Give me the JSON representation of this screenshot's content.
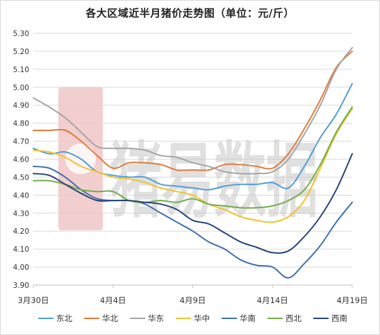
{
  "chart_data": {
    "type": "line",
    "title": "各大区域近半月猪价走势图（单位：元/斤）",
    "xlabel": "",
    "ylabel": "",
    "ylim": [
      3.9,
      5.3
    ],
    "yticks": [
      3.9,
      4.0,
      4.1,
      4.2,
      4.3,
      4.4,
      4.5,
      4.6,
      4.7,
      4.8,
      4.9,
      5.0,
      5.1,
      5.2,
      5.3
    ],
    "ytick_labels": [
      "3.90",
      "4.00",
      "4.10",
      "4.20",
      "4.30",
      "4.40",
      "4.50",
      "4.60",
      "4.70",
      "4.80",
      "4.90",
      "5.00",
      "5.10",
      "5.20",
      "5.30"
    ],
    "x": [
      "3月30日",
      "3月31日",
      "4月1日",
      "4月2日",
      "4月3日",
      "4月4日",
      "4月5日",
      "4月6日",
      "4月7日",
      "4月8日",
      "4月9日",
      "4月10日",
      "4月11日",
      "4月12日",
      "4月13日",
      "4月14日",
      "4月15日",
      "4月16日",
      "4月17日",
      "4月18日",
      "4月19日"
    ],
    "xtick_labels": [
      "3月30日",
      "4月4日",
      "4月9日",
      "4月14日",
      "4月19日"
    ],
    "grid": true,
    "legend_position": "bottom",
    "watermark": "猪易数据",
    "series": [
      {
        "name": "东北",
        "color": "#4f9fd6",
        "values": [
          4.66,
          4.63,
          4.64,
          4.6,
          4.53,
          4.51,
          4.5,
          4.5,
          4.46,
          4.45,
          4.44,
          4.43,
          4.45,
          4.46,
          4.46,
          4.47,
          4.44,
          4.56,
          4.72,
          4.85,
          5.02
        ]
      },
      {
        "name": "华北",
        "color": "#e07b39",
        "values": [
          4.76,
          4.76,
          4.76,
          4.7,
          4.62,
          4.55,
          4.58,
          4.58,
          4.57,
          4.54,
          4.54,
          4.54,
          4.57,
          4.57,
          4.56,
          4.55,
          4.63,
          4.77,
          4.93,
          5.11,
          5.2
        ]
      },
      {
        "name": "华东",
        "color": "#a5a5a5",
        "values": [
          4.94,
          4.89,
          4.83,
          4.75,
          4.67,
          4.66,
          4.66,
          4.65,
          4.62,
          4.61,
          4.58,
          4.56,
          4.53,
          4.52,
          4.52,
          4.53,
          4.6,
          4.74,
          4.9,
          5.1,
          5.22
        ]
      },
      {
        "name": "华中",
        "color": "#f2c12e",
        "values": [
          4.65,
          4.64,
          4.61,
          4.56,
          4.53,
          4.5,
          4.49,
          4.47,
          4.44,
          4.42,
          4.4,
          4.35,
          4.32,
          4.28,
          4.26,
          4.25,
          4.28,
          4.37,
          4.55,
          4.74,
          4.88
        ]
      },
      {
        "name": "华南",
        "color": "#3e6fb0",
        "values": [
          4.56,
          4.55,
          4.5,
          4.43,
          4.38,
          4.37,
          4.37,
          4.35,
          4.3,
          4.25,
          4.2,
          4.14,
          4.1,
          4.04,
          4.01,
          4.0,
          3.94,
          4.02,
          4.12,
          4.25,
          4.36
        ]
      },
      {
        "name": "西北",
        "color": "#70ad47",
        "values": [
          4.48,
          4.48,
          4.46,
          4.43,
          4.42,
          4.42,
          4.37,
          4.36,
          4.37,
          4.36,
          4.38,
          4.35,
          4.34,
          4.33,
          4.33,
          4.34,
          4.37,
          4.43,
          4.57,
          4.75,
          4.89
        ]
      },
      {
        "name": "西南",
        "color": "#264478",
        "values": [
          4.52,
          4.51,
          4.46,
          4.41,
          4.37,
          4.37,
          4.37,
          4.36,
          4.35,
          4.32,
          4.26,
          4.24,
          4.19,
          4.14,
          4.11,
          4.08,
          4.09,
          4.17,
          4.28,
          4.43,
          4.63
        ]
      }
    ]
  }
}
